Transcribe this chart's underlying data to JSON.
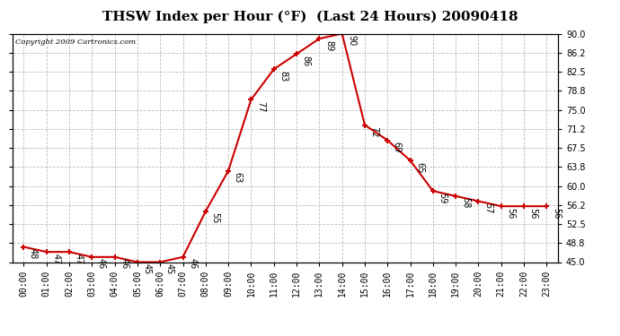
{
  "title": "THSW Index per Hour (°F)  (Last 24 Hours) 20090418",
  "copyright": "Copyright 2009 Cartronics.com",
  "hours": [
    0,
    1,
    2,
    3,
    4,
    5,
    6,
    7,
    8,
    9,
    10,
    11,
    12,
    13,
    14,
    15,
    16,
    17,
    18,
    19,
    20,
    21,
    22,
    23
  ],
  "values": [
    48,
    47,
    47,
    46,
    46,
    45,
    45,
    46,
    55,
    63,
    77,
    83,
    86,
    89,
    90,
    72,
    69,
    65,
    59,
    58,
    57,
    56,
    56,
    56
  ],
  "x_labels": [
    "00:00",
    "01:00",
    "02:00",
    "03:00",
    "04:00",
    "05:00",
    "06:00",
    "07:00",
    "08:00",
    "09:00",
    "10:00",
    "11:00",
    "12:00",
    "13:00",
    "14:00",
    "15:00",
    "16:00",
    "17:00",
    "18:00",
    "19:00",
    "20:00",
    "21:00",
    "22:00",
    "23:00"
  ],
  "y_min": 45.0,
  "y_max": 90.0,
  "y_ticks": [
    45.0,
    48.8,
    52.5,
    56.2,
    60.0,
    63.8,
    67.5,
    71.2,
    75.0,
    78.8,
    82.5,
    86.2,
    90.0
  ],
  "line_color": "#cc0000",
  "marker_color": "#cc0000",
  "bg_color": "#ffffff",
  "grid_color": "#bbbbbb",
  "title_fontsize": 11,
  "label_fontsize": 7,
  "annot_fontsize": 7
}
